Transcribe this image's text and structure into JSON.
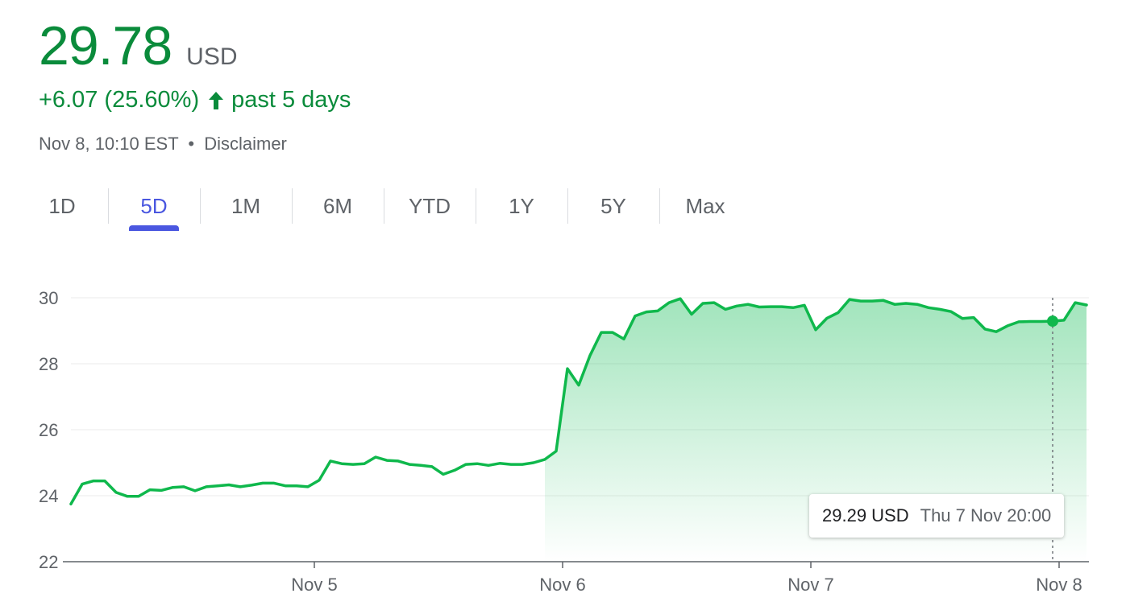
{
  "quote": {
    "price": "29.78",
    "currency": "USD",
    "change": "+6.07 (25.60%)",
    "change_period": "past 5 days",
    "timestamp": "Nov 8, 10:10 EST",
    "separator": "•",
    "disclaimer": "Disclaimer"
  },
  "tabs": [
    {
      "label": "1D",
      "active": false
    },
    {
      "label": "5D",
      "active": true
    },
    {
      "label": "1M",
      "active": false
    },
    {
      "label": "6M",
      "active": false
    },
    {
      "label": "YTD",
      "active": false
    },
    {
      "label": "1Y",
      "active": false
    },
    {
      "label": "5Y",
      "active": false
    },
    {
      "label": "Max",
      "active": false
    }
  ],
  "tooltip": {
    "value": "29.29 USD",
    "time": "Thu 7 Nov 20:00"
  },
  "colors": {
    "up": "#0a8b3b",
    "line": "#0fb84c",
    "active_tab": "#4a57e0"
  },
  "chart_data": {
    "type": "area",
    "title": "",
    "xlabel": "",
    "ylabel": "",
    "ylim": [
      22,
      30
    ],
    "y_ticks": [
      22,
      24,
      26,
      28,
      30
    ],
    "x_tick_labels": [
      {
        "label": "Nov 5",
        "index": 21
      },
      {
        "label": "Nov 6",
        "index": 43
      },
      {
        "label": "Nov 7",
        "index": 65
      },
      {
        "label": "Nov 8",
        "index": 87
      }
    ],
    "highlight": {
      "index": 87,
      "value": 29.29
    },
    "grid": true,
    "series": [
      {
        "values": [
          23.75,
          24.35,
          24.45,
          24.45,
          24.1,
          23.98,
          23.98,
          24.18,
          24.16,
          24.25,
          24.27,
          24.15,
          24.27,
          24.3,
          24.33,
          24.27,
          24.32,
          24.38,
          24.38,
          24.3,
          24.3,
          24.27,
          24.47,
          25.05,
          24.97,
          24.95,
          24.97,
          25.17,
          25.07,
          25.05,
          24.95,
          24.92,
          24.88,
          24.65,
          24.77,
          24.95,
          24.97,
          24.92,
          24.98,
          24.95,
          24.95,
          25.0,
          25.1,
          25.35,
          27.85,
          27.35,
          28.25,
          28.95,
          28.95,
          28.75,
          29.45,
          29.57,
          29.6,
          29.85,
          29.97,
          29.5,
          29.83,
          29.85,
          29.65,
          29.75,
          29.8,
          29.72,
          29.73,
          29.73,
          29.7,
          29.77,
          29.03,
          29.38,
          29.55,
          29.95,
          29.9,
          29.9,
          29.92,
          29.8,
          29.83,
          29.8,
          29.7,
          29.65,
          29.58,
          29.37,
          29.4,
          29.05,
          28.97,
          29.15,
          29.27,
          29.28,
          29.28,
          29.29,
          29.32,
          29.85,
          29.78
        ]
      }
    ]
  }
}
